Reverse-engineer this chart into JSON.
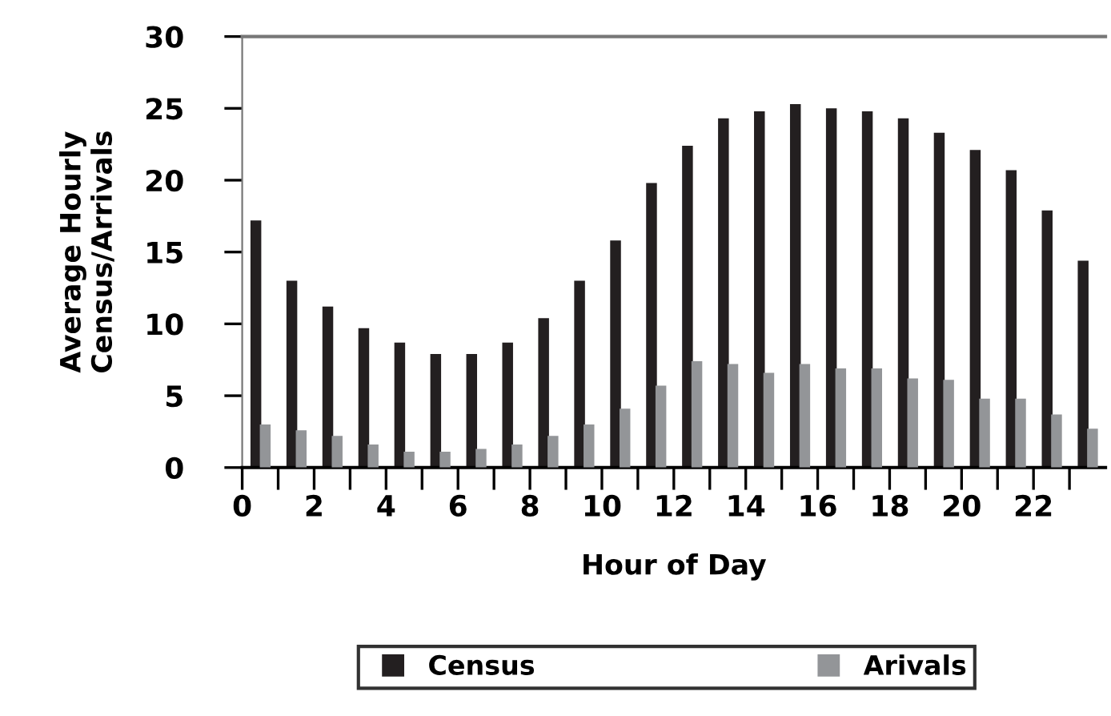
{
  "chart_data": {
    "type": "bar",
    "xlabel": "Hour of Day",
    "ylabel": "Average Hourly\nCensus/Arrivals",
    "x": [
      0.5,
      1.5,
      2.5,
      3.5,
      4.5,
      5.5,
      6.5,
      7.5,
      8.5,
      9.5,
      10.5,
      11.5,
      12.5,
      13.5,
      14.5,
      15.5,
      16.5,
      17.5,
      18.5,
      19.5,
      20.5,
      21.5,
      22.5,
      23.5
    ],
    "series": [
      {
        "name": "Census",
        "color": "#231f20",
        "values": [
          17.2,
          13.0,
          11.2,
          9.7,
          8.7,
          7.9,
          7.9,
          8.7,
          10.4,
          13.0,
          15.8,
          19.8,
          22.4,
          24.3,
          24.8,
          25.3,
          25.0,
          24.8,
          24.3,
          23.3,
          22.1,
          20.7,
          17.9,
          14.4
        ]
      },
      {
        "name": "Arivals",
        "color": "#939598",
        "values": [
          3.0,
          2.6,
          2.2,
          1.6,
          1.1,
          1.1,
          1.3,
          1.6,
          2.2,
          3.0,
          4.1,
          5.7,
          7.4,
          7.2,
          6.6,
          7.2,
          6.9,
          6.9,
          6.2,
          6.1,
          4.8,
          4.8,
          3.7,
          2.7
        ]
      }
    ],
    "xlim": [
      0,
      24
    ],
    "xticks": [
      0,
      {
        "value": 1,
        "label": null
      },
      2,
      {
        "value": 3,
        "label": null
      },
      4,
      {
        "value": 5,
        "label": null
      },
      6,
      {
        "value": 7,
        "label": null
      },
      8,
      {
        "value": 9,
        "label": null
      },
      10,
      {
        "value": 11,
        "label": null
      },
      12,
      {
        "value": 13,
        "label": null
      },
      14,
      {
        "value": 15,
        "label": null
      },
      16,
      {
        "value": 17,
        "label": null
      },
      18,
      {
        "value": 19,
        "label": null
      },
      20,
      {
        "value": 21,
        "label": null
      },
      22,
      {
        "value": 23,
        "label": null
      }
    ],
    "ylim": [
      0,
      30
    ],
    "yticks": [
      0,
      5,
      10,
      15,
      20,
      25,
      30
    ],
    "grid": false,
    "legend": "bottom",
    "marker": "square"
  }
}
